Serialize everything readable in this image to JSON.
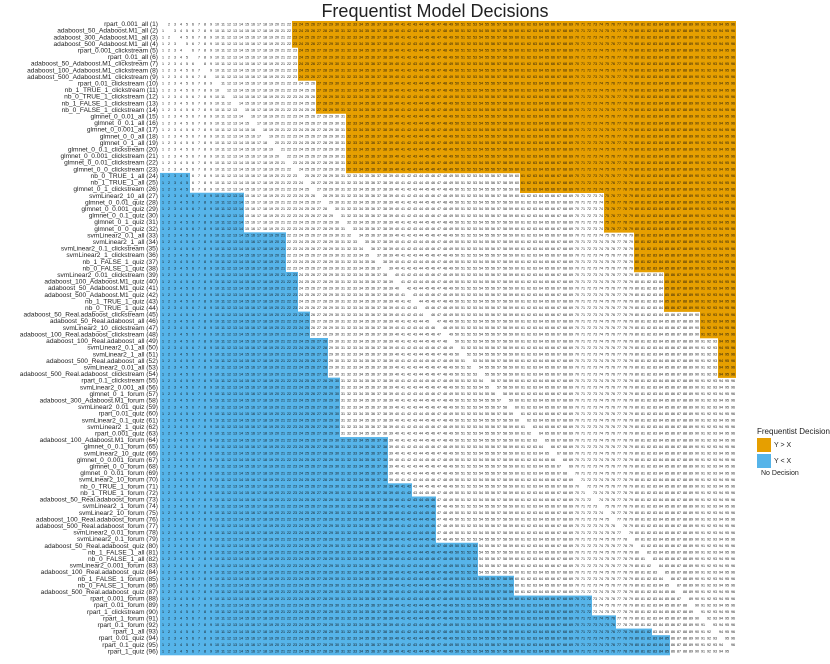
{
  "chart_data": {
    "type": "heatmap",
    "title": "Frequentist Model Decisions",
    "legend_title": "Frequentist Decision",
    "no_decision_label": "No Decision",
    "columns": [
      1,
      2,
      3,
      4,
      5,
      6,
      7,
      8,
      9,
      10,
      11,
      12,
      13,
      14,
      15,
      16,
      17,
      18,
      19,
      20,
      21,
      22,
      23,
      24,
      25,
      26,
      27,
      28,
      29,
      30,
      31,
      32,
      33,
      34,
      35,
      36,
      37,
      38,
      39,
      40,
      41,
      42,
      43,
      44,
      45,
      46,
      47,
      48,
      49,
      50,
      51,
      52,
      53,
      54,
      55,
      56,
      57,
      58,
      59,
      60,
      61,
      62,
      63,
      64,
      65,
      66,
      67,
      68,
      69,
      70,
      71,
      72,
      73,
      74,
      75,
      76,
      77,
      78,
      79,
      80,
      81,
      82,
      83,
      84,
      85,
      86,
      87,
      88,
      89,
      90,
      91,
      92,
      93,
      94,
      95,
      96
    ],
    "rows": [
      "rpart_0.001_all (1)",
      "adaboost_50_Adaboost.M1_all (2)",
      "adaboost_300_Adaboost.M1_all (3)",
      "adaboost_500_Adaboost.M1_all (4)",
      "rpart_0.001_clickstream (5)",
      "rpart_0.01_all (6)",
      "adaboost_50_Adaboost.M1_clickstream (7)",
      "adaboost_100_Adaboost.M1_clickstream (8)",
      "adaboost_500_Adaboost.M1_clickstream (9)",
      "rpart_0.01_clickstream (10)",
      "nb_1_TRUE_1_clickstream (11)",
      "nb_0_TRUE_1_clickstream (12)",
      "nb_1_FALSE_1_clickstream (13)",
      "nb_0_FALSE_1_clickstream (14)",
      "glmnet_0_0.01_all (15)",
      "glmnet_0_0.1_all (16)",
      "glmnet_0_0.001_all (17)",
      "glmnet_0_0_all (18)",
      "glmnet_0_1_all (19)",
      "glmnet_0_0.1_clickstream (20)",
      "glmnet_0_0.001_clickstream (21)",
      "glmnet_0_0.01_clickstream (22)",
      "glmnet_0_0_clickstream (23)",
      "nb_0_TRUE_1_all (24)",
      "nb_1_TRUE_1_all (25)",
      "glmnet_0_1_clickstream (26)",
      "svmLinear2_10_all (27)",
      "glmnet_0_0.01_quiz (28)",
      "glmnet_0_0.001_quiz (29)",
      "glmnet_0_0.1_quiz (30)",
      "glmnet_0_1_quiz (31)",
      "glmnet_0_0_quiz (32)",
      "svmLinear2_0.1_all (33)",
      "svmLinear2_1_all (34)",
      "svmLinear2_0.1_clickstream (35)",
      "svmLinear2_1_clickstream (36)",
      "nb_1_FALSE_1_quiz (37)",
      "nb_0_FALSE_1_quiz (38)",
      "svmLinear2_0.01_clickstream (39)",
      "adaboost_100_Adaboost.M1_quiz (40)",
      "adaboost_50_Adaboost.M1_quiz (41)",
      "adaboost_500_Adaboost.M1_quiz (42)",
      "nb_1_TRUE_1_quiz (43)",
      "nb_0_TRUE_1_quiz (44)",
      "adaboost_50_Real.adaboost_clickstream (45)",
      "adaboost_50_Real.adaboost_all (46)",
      "svmLinear2_10_clickstream (47)",
      "adaboost_100_Real.adaboost_clickstream (48)",
      "adaboost_100_Real.adaboost_all (49)",
      "svmLinear2_0.1_all (50)",
      "svmLinear2_1_all (51)",
      "adaboost_500_Real.adaboost_all (52)",
      "svmLinear2_0.01_all (53)",
      "adaboost_500_Real.adaboost_clickstream (54)",
      "rpart_0.1_clickstream (55)",
      "svmLinear2_0.001_all (56)",
      "glmnet_0_1_forum (57)",
      "adaboost_300_Adaboost.M1_forum (58)",
      "svmLinear2_0.01_quiz (59)",
      "rpart_0.01_quiz (60)",
      "svmLinear2_0.1_quiz (61)",
      "svmLinear2_1_quiz (62)",
      "rpart_0.001_quiz (63)",
      "adaboost_100_Adaboost.M1_forum (64)",
      "glmnet_0_0.1_forum (65)",
      "svmLinear2_10_quiz (66)",
      "glmnet_0_0.001_forum (67)",
      "glmnet_0_0_forum (68)",
      "glmnet_0_0.01_forum (69)",
      "svmLinear2_10_forum (70)",
      "nb_0_TRUE_1_forum (71)",
      "nb_1_TRUE_1_forum (72)",
      "adaboost_50_Real.adaboost_forum (73)",
      "svmLinear2_1_forum (74)",
      "svmLinear2_10_forum (75)",
      "adaboost_100_Real.adaboost_forum (76)",
      "adaboost_500_Real.adaboost_forum (77)",
      "svmLinear2_0.01_forum (78)",
      "svmLinear2_0.1_forum (79)",
      "adaboost_50_Real.adaboost_quiz (80)",
      "nb_1_FALSE_1_all (81)",
      "nb_0_FALSE_1_all (82)",
      "svmLinear2_0.001_forum (83)",
      "adaboost_100_Real.adaboost_quiz (84)",
      "nb_1_FALSE_1_forum (85)",
      "nb_0_FALSE_1_forum (86)",
      "adaboost_500_Real.adaboost_quiz (87)",
      "rpart_0.001_forum (88)",
      "rpart_0.01_forum (89)",
      "rpart_1_clickstream (90)",
      "rpart_1_forum (91)",
      "rpart_0.1_forum (92)",
      "rpart_1_all (93)",
      "rpart_0.01_quiz (94)",
      "rpart_0.1_quiz (95)",
      "rpart_1_quiz (96)"
    ],
    "series": [
      {
        "name": "Y > X",
        "color": "#e69f00",
        "values": [
          23,
          23,
          23,
          23,
          24,
          24,
          24,
          24,
          24,
          27,
          27,
          27,
          27,
          27,
          32,
          32,
          32,
          32,
          32,
          32,
          32,
          32,
          32,
          61,
          61,
          61,
          75,
          75,
          75,
          75,
          75,
          75,
          80,
          80,
          80,
          80,
          80,
          80,
          85,
          85,
          85,
          85,
          85,
          85,
          91,
          91,
          91,
          91,
          94,
          94,
          94,
          94,
          94,
          94,
          null,
          null,
          null,
          null,
          null,
          null,
          null,
          null,
          null,
          null,
          null,
          null,
          null,
          null,
          null,
          null,
          null,
          null,
          null,
          null,
          null,
          null,
          null,
          null,
          null,
          null,
          null,
          null,
          null,
          null,
          null,
          null,
          null,
          null,
          null,
          null,
          null,
          null,
          null,
          null,
          null,
          null
        ]
      },
      {
        "name": "Y < X",
        "color": "#56b4e9",
        "values": [
          0,
          0,
          0,
          0,
          0,
          0,
          0,
          0,
          0,
          0,
          0,
          0,
          0,
          0,
          0,
          0,
          0,
          0,
          0,
          0,
          0,
          0,
          0,
          5,
          5,
          5,
          14,
          14,
          14,
          14,
          14,
          14,
          21,
          21,
          21,
          21,
          21,
          21,
          23,
          23,
          23,
          23,
          23,
          23,
          25,
          25,
          25,
          25,
          28,
          28,
          28,
          28,
          28,
          28,
          30,
          30,
          30,
          30,
          30,
          30,
          30,
          30,
          30,
          38,
          38,
          38,
          38,
          38,
          38,
          38,
          42,
          42,
          46,
          46,
          46,
          46,
          46,
          46,
          46,
          53,
          53,
          53,
          53,
          53,
          59,
          59,
          59,
          72,
          72,
          72,
          76,
          76,
          82,
          85,
          85,
          85
        ]
      }
    ]
  }
}
